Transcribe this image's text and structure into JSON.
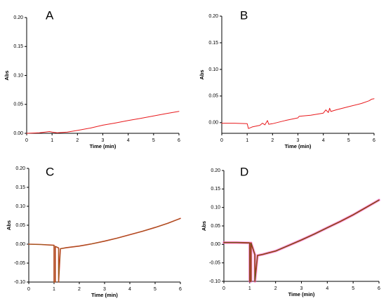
{
  "chart_data": [
    {
      "panel": "A",
      "type": "line",
      "xlabel": "Time (min)",
      "ylabel": "Abs",
      "xlim": [
        0,
        6
      ],
      "ylim": [
        0,
        0.2
      ],
      "xticks": [
        "0",
        "1",
        "2",
        "3",
        "4",
        "5",
        "6"
      ],
      "yticks": [
        "0.00",
        "0.05",
        "0.10",
        "0.15",
        "0.20"
      ],
      "series": [
        {
          "color": "#e8191c",
          "x": [
            0,
            0.5,
            0.9,
            1.0,
            1.2,
            1.6,
            2.0,
            2.5,
            3.0,
            3.5,
            4.0,
            4.5,
            5.0,
            5.5,
            6.0
          ],
          "y": [
            0,
            0.001,
            0.003,
            0.002,
            0.001,
            0.002,
            0.005,
            0.009,
            0.014,
            0.018,
            0.022,
            0.026,
            0.03,
            0.034,
            0.038
          ]
        }
      ]
    },
    {
      "panel": "B",
      "type": "line",
      "xlabel": "Time (min)",
      "ylabel": "Abs",
      "xlim": [
        0,
        6
      ],
      "ylim": [
        -0.02,
        0.2
      ],
      "xticks": [
        "0",
        "1",
        "2",
        "3",
        "4",
        "5",
        "6"
      ],
      "yticks": [
        "0.00",
        "0.05",
        "0.10",
        "0.15",
        "0.20"
      ],
      "series": [
        {
          "color": "#e8191c",
          "x": [
            0,
            0.5,
            1.0,
            1.05,
            1.2,
            1.5,
            1.6,
            1.7,
            1.8,
            1.85,
            2.0,
            2.5,
            3.0,
            3.05,
            3.5,
            4.0,
            4.1,
            4.2,
            4.25,
            4.3,
            4.5,
            5.0,
            5.5,
            5.8,
            5.9,
            6.0
          ],
          "y": [
            -0.001,
            -0.001,
            -0.002,
            -0.011,
            -0.008,
            -0.005,
            -0.001,
            -0.004,
            0.004,
            -0.003,
            -0.002,
            0.004,
            0.009,
            0.012,
            0.014,
            0.018,
            0.024,
            0.019,
            0.027,
            0.021,
            0.024,
            0.03,
            0.036,
            0.041,
            0.044,
            0.045
          ]
        }
      ]
    },
    {
      "panel": "C",
      "type": "line",
      "xlabel": "Time (min)",
      "ylabel": "Abs",
      "xlim": [
        0,
        6
      ],
      "ylim": [
        -0.1,
        0.2
      ],
      "xticks": [
        "0",
        "1",
        "2",
        "3",
        "4",
        "5",
        "6"
      ],
      "yticks": [
        "-0.10",
        "-0.05",
        "0.00",
        "0.05",
        "0.10",
        "0.15",
        "0.20"
      ],
      "series": [
        {
          "color": "#e8191c",
          "x": [
            0,
            0.5,
            1.0,
            1.0,
            1.05,
            1.05,
            1.18,
            1.18,
            1.25,
            1.5,
            2.0,
            2.5,
            3.0,
            3.5,
            4.0,
            4.5,
            5.0,
            5.5,
            6.0
          ],
          "y": [
            0.0,
            -0.001,
            -0.003,
            -0.1,
            -0.1,
            -0.006,
            -0.01,
            -0.1,
            -0.012,
            -0.009,
            -0.005,
            0.001,
            0.008,
            0.016,
            0.025,
            0.034,
            0.044,
            0.055,
            0.068
          ]
        },
        {
          "color": "#8c6a1f",
          "x": [
            0,
            0.5,
            1.0,
            1.0,
            1.05,
            1.05,
            1.18,
            1.18,
            1.25,
            1.5,
            2.0,
            2.5,
            3.0,
            3.5,
            4.0,
            4.5,
            5.0,
            5.5,
            6.0
          ],
          "y": [
            0.0,
            -0.001,
            -0.003,
            -0.1,
            -0.1,
            -0.006,
            -0.01,
            -0.1,
            -0.012,
            -0.009,
            -0.005,
            0.001,
            0.008,
            0.016,
            0.025,
            0.034,
            0.044,
            0.055,
            0.068
          ]
        }
      ]
    },
    {
      "panel": "D",
      "type": "line",
      "xlabel": "Time (min)",
      "ylabel": "Abs",
      "xlim": [
        0,
        6
      ],
      "ylim": [
        -0.1,
        0.2
      ],
      "xticks": [
        "0",
        "1",
        "2",
        "3",
        "4",
        "5",
        "6"
      ],
      "yticks": [
        "-0.10",
        "-0.05",
        "0.00",
        "0.05",
        "0.10",
        "0.15",
        "0.20"
      ],
      "series": [
        {
          "color": "#f06fd8",
          "x": [
            0,
            0.5,
            1.0,
            1.0,
            1.05,
            1.05,
            1.2,
            1.2,
            1.3,
            1.5,
            2.0,
            2.5,
            3.0,
            3.5,
            4.0,
            4.5,
            5.0,
            5.5,
            6.0
          ],
          "y": [
            0.005,
            0.005,
            0.004,
            -0.1,
            -0.1,
            0.004,
            -0.028,
            -0.1,
            -0.03,
            -0.027,
            -0.018,
            -0.003,
            0.012,
            0.028,
            0.045,
            0.062,
            0.08,
            0.1,
            0.12
          ]
        },
        {
          "color": "#e8191c",
          "x": [
            0,
            0.5,
            1.0,
            1.0,
            1.05,
            1.05,
            1.2,
            1.2,
            1.3,
            1.5,
            2.0,
            2.5,
            3.0,
            3.5,
            4.0,
            4.5,
            5.0,
            5.5,
            6.0
          ],
          "y": [
            0.005,
            0.005,
            0.004,
            -0.1,
            -0.1,
            0.004,
            -0.028,
            -0.1,
            -0.03,
            -0.027,
            -0.018,
            -0.003,
            0.012,
            0.028,
            0.045,
            0.062,
            0.08,
            0.1,
            0.12
          ]
        },
        {
          "color": "#3c6e1e",
          "x": [
            0,
            0.5,
            1.0,
            1.0,
            1.05,
            1.05,
            1.2,
            1.2,
            1.3,
            1.5,
            2.0,
            2.5,
            3.0,
            3.5,
            4.0,
            4.5,
            5.0,
            5.5,
            6.0
          ],
          "y": [
            0.005,
            0.005,
            0.004,
            -0.1,
            -0.1,
            0.004,
            -0.028,
            -0.1,
            -0.03,
            -0.027,
            -0.018,
            -0.003,
            0.012,
            0.028,
            0.045,
            0.062,
            0.08,
            0.1,
            0.12
          ]
        }
      ]
    }
  ]
}
